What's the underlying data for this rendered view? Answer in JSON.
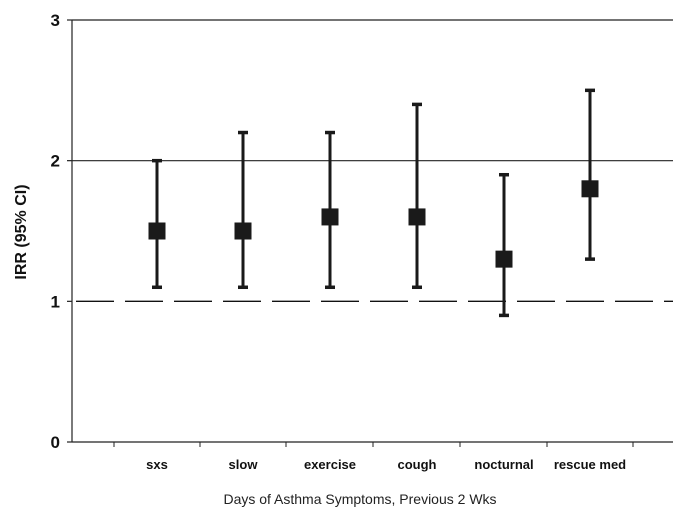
{
  "chart_data": {
    "type": "scatter",
    "subtype": "point-estimate-with-error-bars",
    "title": "",
    "xlabel": "Days of Asthma Symptoms, Previous 2 Wks",
    "ylabel": "IRR (95% CI)",
    "ylim": [
      0,
      3
    ],
    "yticks": [
      0,
      1,
      2,
      3
    ],
    "reference_line": {
      "y": 1,
      "style": "dashed"
    },
    "grid": false,
    "categories": [
      "sxs",
      "slow",
      "exercise",
      "cough",
      "nocturnal",
      "rescue med"
    ],
    "series": [
      {
        "values": [
          1.5,
          1.5,
          1.6,
          1.6,
          1.3,
          1.8
        ],
        "lower": [
          1.1,
          1.1,
          1.1,
          1.1,
          0.9,
          1.3
        ],
        "upper": [
          2.0,
          2.2,
          2.2,
          2.4,
          1.9,
          2.5
        ]
      }
    ],
    "colors": {
      "marker": "#1a1a1a",
      "axis": "#222222"
    }
  }
}
